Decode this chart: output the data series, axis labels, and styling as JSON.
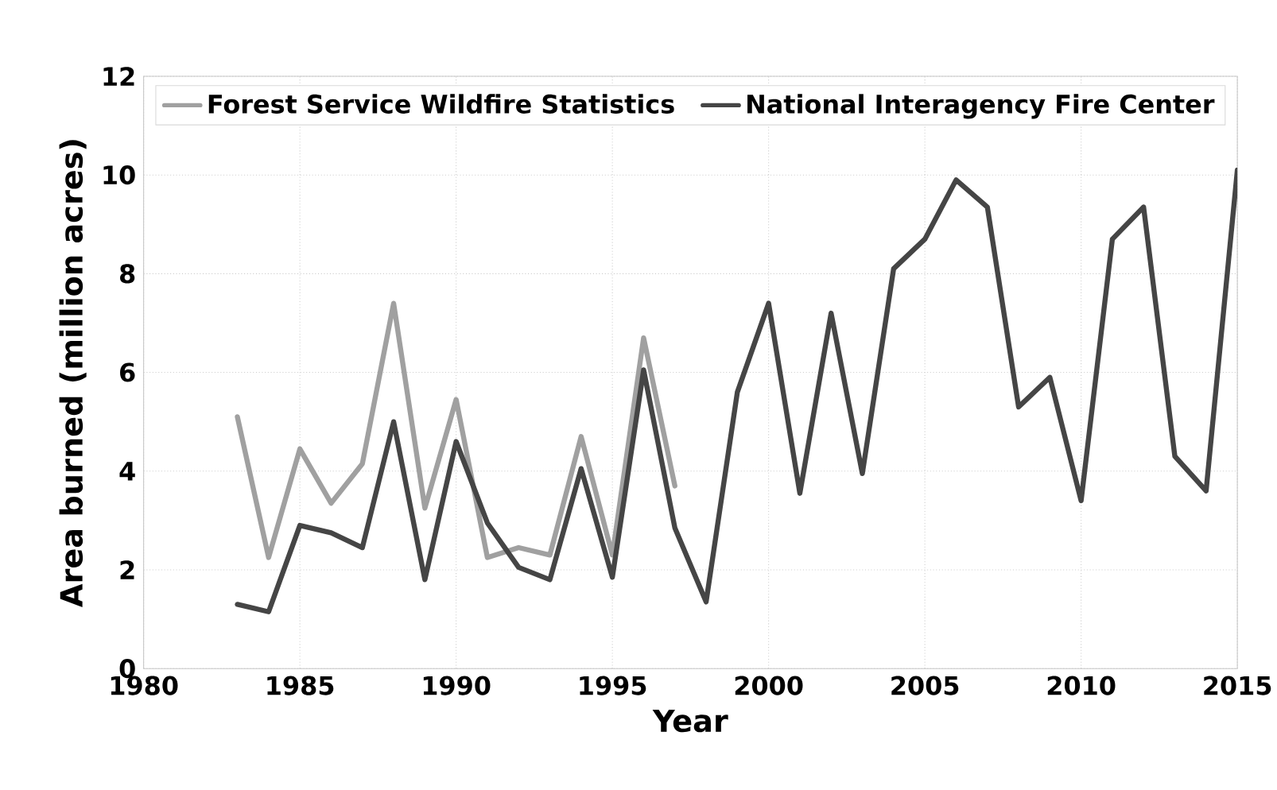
{
  "chart_data": {
    "type": "line",
    "xlabel": "Year",
    "ylabel": "Area burned (million acres)",
    "xlim": [
      1980,
      2015
    ],
    "xticks": [
      1980,
      1985,
      1990,
      1995,
      2000,
      2005,
      2010,
      2015
    ],
    "ylim": [
      0,
      12
    ],
    "yticks": [
      0,
      2,
      4,
      6,
      8,
      10,
      12
    ],
    "grid": true,
    "legend": "top",
    "series": [
      {
        "name": "Forest Service Wildfire Statistics",
        "color": "#a0a0a0",
        "x": [
          1983,
          1984,
          1985,
          1986,
          1987,
          1988,
          1989,
          1990,
          1991,
          1992,
          1993,
          1994,
          1995,
          1996,
          1997
        ],
        "values": [
          5.1,
          2.25,
          4.45,
          3.35,
          4.15,
          7.4,
          3.25,
          5.45,
          2.25,
          2.45,
          2.3,
          4.7,
          2.3,
          6.7,
          3.7
        ]
      },
      {
        "name": "National Interagency Fire Center",
        "color": "#454545",
        "x": [
          1983,
          1984,
          1985,
          1986,
          1987,
          1988,
          1989,
          1990,
          1991,
          1992,
          1993,
          1994,
          1995,
          1996,
          1997,
          1998,
          1999,
          2000,
          2001,
          2002,
          2003,
          2004,
          2005,
          2006,
          2007,
          2008,
          2009,
          2010,
          2011,
          2012,
          2013,
          2014,
          2015
        ],
        "values": [
          1.3,
          1.15,
          2.9,
          2.75,
          2.45,
          5.0,
          1.8,
          4.6,
          2.95,
          2.05,
          1.8,
          4.05,
          1.85,
          6.05,
          2.85,
          1.35,
          5.6,
          7.4,
          3.55,
          7.2,
          3.95,
          8.1,
          8.7,
          9.9,
          9.35,
          5.3,
          5.9,
          3.4,
          8.7,
          9.35,
          4.3,
          3.6,
          10.1
        ]
      }
    ]
  }
}
